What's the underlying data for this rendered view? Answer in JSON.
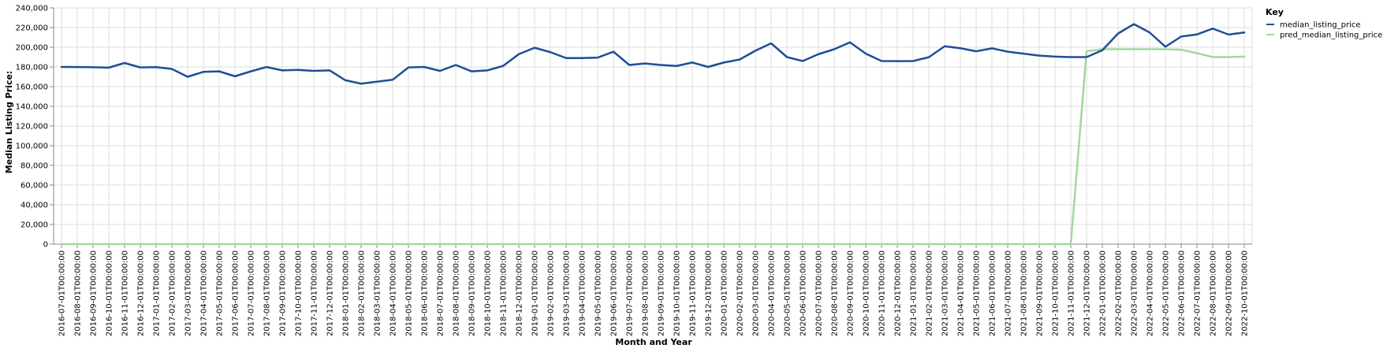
{
  "chart_data": {
    "type": "line",
    "xlabel": "Month and Year",
    "ylabel": "Median Listing Price:",
    "ylim": [
      0,
      240000
    ],
    "yticks": [
      0,
      20000,
      40000,
      60000,
      80000,
      100000,
      120000,
      140000,
      160000,
      180000,
      200000,
      220000,
      240000
    ],
    "ytick_labels": [
      "0",
      "20,000",
      "40,000",
      "60,000",
      "80,000",
      "100,000",
      "120,000",
      "140,000",
      "160,000",
      "180,000",
      "200,000",
      "220,000",
      "240,000"
    ],
    "grid": true,
    "legend": {
      "title": "Key",
      "placement": "top-right outside"
    },
    "x": [
      "2016-07-01T00:00:00",
      "2016-08-01T00:00:00",
      "2016-09-01T00:00:00",
      "2016-10-01T00:00:00",
      "2016-11-01T00:00:00",
      "2016-12-01T00:00:00",
      "2017-01-01T00:00:00",
      "2017-02-01T00:00:00",
      "2017-03-01T00:00:00",
      "2017-04-01T00:00:00",
      "2017-05-01T00:00:00",
      "2017-06-01T00:00:00",
      "2017-07-01T00:00:00",
      "2017-08-01T00:00:00",
      "2017-09-01T00:00:00",
      "2017-10-01T00:00:00",
      "2017-11-01T00:00:00",
      "2017-12-01T00:00:00",
      "2018-01-01T00:00:00",
      "2018-02-01T00:00:00",
      "2018-03-01T00:00:00",
      "2018-04-01T00:00:00",
      "2018-05-01T00:00:00",
      "2018-06-01T00:00:00",
      "2018-07-01T00:00:00",
      "2018-08-01T00:00:00",
      "2018-09-01T00:00:00",
      "2018-10-01T00:00:00",
      "2018-11-01T00:00:00",
      "2018-12-01T00:00:00",
      "2019-01-01T00:00:00",
      "2019-02-01T00:00:00",
      "2019-03-01T00:00:00",
      "2019-04-01T00:00:00",
      "2019-05-01T00:00:00",
      "2019-06-01T00:00:00",
      "2019-07-01T00:00:00",
      "2019-08-01T00:00:00",
      "2019-09-01T00:00:00",
      "2019-10-01T00:00:00",
      "2019-11-01T00:00:00",
      "2019-12-01T00:00:00",
      "2020-01-01T00:00:00",
      "2020-02-01T00:00:00",
      "2020-03-01T00:00:00",
      "2020-04-01T00:00:00",
      "2020-05-01T00:00:00",
      "2020-06-01T00:00:00",
      "2020-07-01T00:00:00",
      "2020-08-01T00:00:00",
      "2020-09-01T00:00:00",
      "2020-10-01T00:00:00",
      "2020-11-01T00:00:00",
      "2020-12-01T00:00:00",
      "2021-01-01T00:00:00",
      "2021-02-01T00:00:00",
      "2021-03-01T00:00:00",
      "2021-04-01T00:00:00",
      "2021-05-01T00:00:00",
      "2021-06-01T00:00:00",
      "2021-07-01T00:00:00",
      "2021-08-01T00:00:00",
      "2021-09-01T00:00:00",
      "2021-10-01T00:00:00",
      "2021-11-01T00:00:00",
      "2021-12-01T00:00:00",
      "2022-01-01T00:00:00",
      "2022-02-01T00:00:00",
      "2022-03-01T00:00:00",
      "2022-04-01T00:00:00",
      "2022-05-01T00:00:00",
      "2022-06-01T00:00:00",
      "2022-07-01T00:00:00",
      "2022-08-01T00:00:00",
      "2022-09-01T00:00:00",
      "2022-10-01T00:00:00"
    ],
    "series": [
      {
        "name": "median_listing_price",
        "color": "#1f4e96",
        "values": [
          180000,
          179900,
          179700,
          179300,
          184000,
          179500,
          179800,
          177900,
          170000,
          175000,
          175500,
          170500,
          175500,
          179900,
          176500,
          177000,
          176000,
          176500,
          166500,
          163000,
          165000,
          167000,
          179500,
          180000,
          176000,
          182000,
          175500,
          176500,
          181000,
          193000,
          199500,
          195000,
          189000,
          189000,
          189500,
          195500,
          182000,
          183500,
          182000,
          181000,
          184500,
          180000,
          184500,
          187500,
          196500,
          204000,
          190000,
          186000,
          193000,
          198000,
          205000,
          193500,
          186000,
          185900,
          186000,
          189900,
          201000,
          199000,
          195900,
          198900,
          195500,
          193500,
          191500,
          190500,
          190000,
          190000,
          197000,
          214000,
          223500,
          215000,
          200500,
          210900,
          213000,
          219000,
          212900,
          215000
        ]
      },
      {
        "name": "pred_median_listing_price",
        "color": "#a1d99b",
        "values": [
          0,
          0,
          0,
          0,
          0,
          0,
          0,
          0,
          0,
          0,
          0,
          0,
          0,
          0,
          0,
          0,
          0,
          0,
          0,
          0,
          0,
          0,
          0,
          0,
          0,
          0,
          0,
          0,
          0,
          0,
          0,
          0,
          0,
          0,
          0,
          0,
          0,
          0,
          0,
          0,
          0,
          0,
          0,
          0,
          0,
          0,
          0,
          0,
          0,
          0,
          0,
          0,
          0,
          0,
          0,
          0,
          0,
          0,
          0,
          0,
          0,
          0,
          0,
          0,
          0,
          196000,
          198000,
          198000,
          198000,
          198000,
          198000,
          197500,
          194000,
          190000,
          190000,
          190500
        ]
      }
    ]
  }
}
